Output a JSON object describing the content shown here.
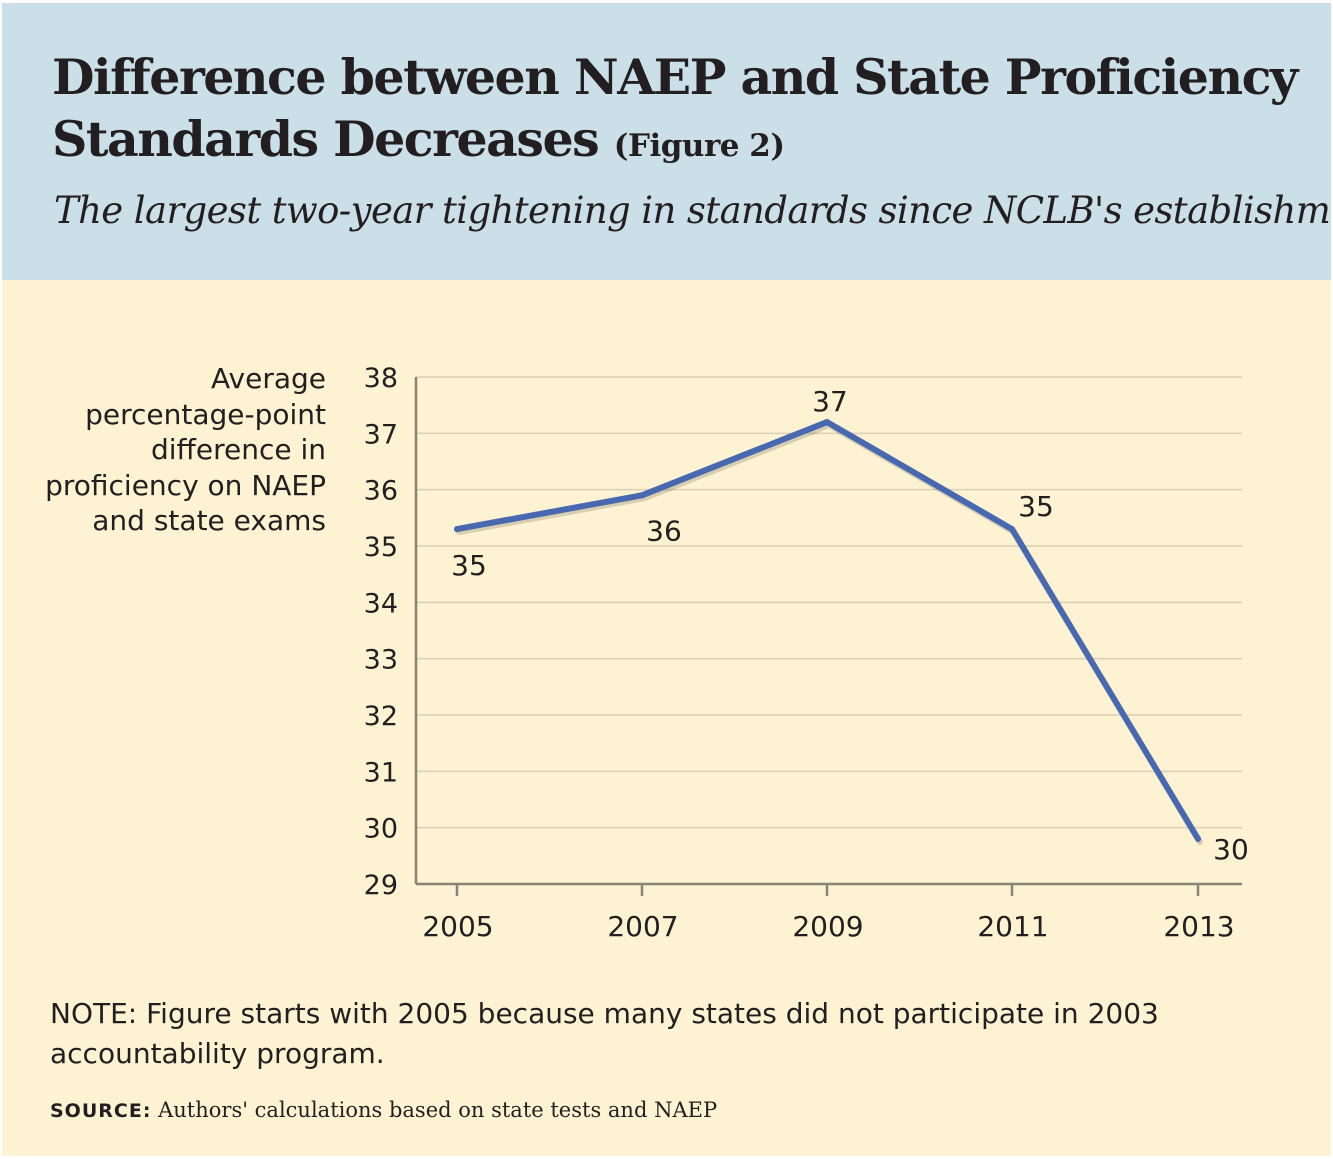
{
  "header": {
    "title_line1": "Difference between NAEP and State Proficiency",
    "title_line2": "Standards Decreases",
    "figure_tag": "(Figure 2)",
    "subtitle": "The largest two-year tightening in standards since NCLB's establishment"
  },
  "chart_data": {
    "type": "line",
    "x": [
      "2005",
      "2007",
      "2009",
      "2011",
      "2013"
    ],
    "series": [
      {
        "values": [
          35.3,
          35.9,
          37.2,
          35.3,
          29.8
        ],
        "labels": [
          "35",
          "36",
          "37",
          "35",
          "30"
        ]
      }
    ],
    "ylabel": "Average percentage-point difference in proficiency on NAEP and state exams",
    "ylim": [
      29,
      38
    ],
    "yticks": [
      "29",
      "30",
      "31",
      "32",
      "33",
      "34",
      "35",
      "36",
      "37",
      "38"
    ],
    "grid": true,
    "line_color": "#4868b0",
    "grid_color": "#d8cfb4",
    "axis_color": "#8a8478"
  },
  "footer": {
    "note": "NOTE: Figure starts with 2005 because many states did not participate in 2003 accountability program.",
    "source_label": "SOURCE:",
    "source_text": "Authors' calculations based on state tests and NAEP"
  },
  "colors": {
    "header_bg": "#cbdfe9",
    "body_bg": "#fdf2d2",
    "text": "#231f20"
  }
}
